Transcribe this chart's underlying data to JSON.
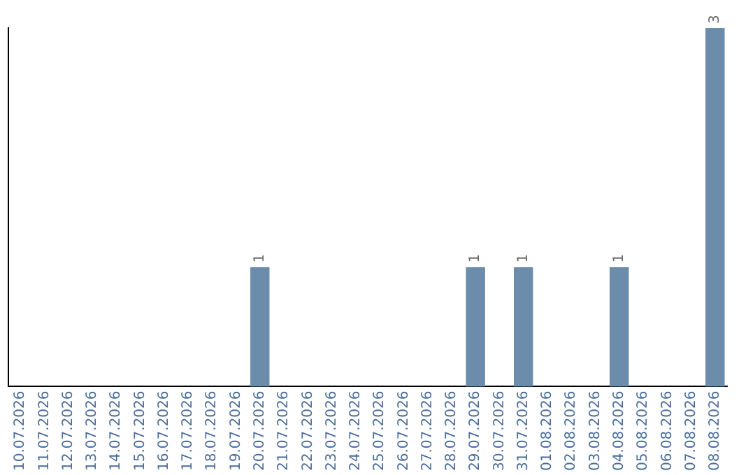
{
  "chart_data": {
    "type": "bar",
    "categories": [
      "10.07.2026",
      "11.07.2026",
      "12.07.2026",
      "13.07.2026",
      "14.07.2026",
      "15.07.2026",
      "16.07.2026",
      "17.07.2026",
      "18.07.2026",
      "19.07.2026",
      "20.07.2026",
      "21.07.2026",
      "22.07.2026",
      "23.07.2026",
      "24.07.2026",
      "25.07.2026",
      "26.07.2026",
      "27.07.2026",
      "28.07.2026",
      "29.07.2026",
      "30.07.2026",
      "31.07.2026",
      "01.08.2026",
      "02.08.2026",
      "03.08.2026",
      "04.08.2026",
      "05.08.2026",
      "06.08.2026",
      "07.08.2026",
      "08.08.2026"
    ],
    "values": [
      0,
      0,
      0,
      0,
      0,
      0,
      0,
      0,
      0,
      0,
      1,
      0,
      0,
      0,
      0,
      0,
      0,
      0,
      0,
      1,
      0,
      1,
      0,
      0,
      0,
      1,
      0,
      0,
      0,
      3
    ],
    "value_labels": [
      null,
      null,
      null,
      null,
      null,
      null,
      null,
      null,
      null,
      null,
      "1",
      null,
      null,
      null,
      null,
      null,
      null,
      null,
      null,
      "1",
      null,
      "1",
      null,
      null,
      null,
      "1",
      null,
      null,
      null,
      "3"
    ],
    "color": "#6b8cab",
    "grid": false,
    "legend": false
  }
}
